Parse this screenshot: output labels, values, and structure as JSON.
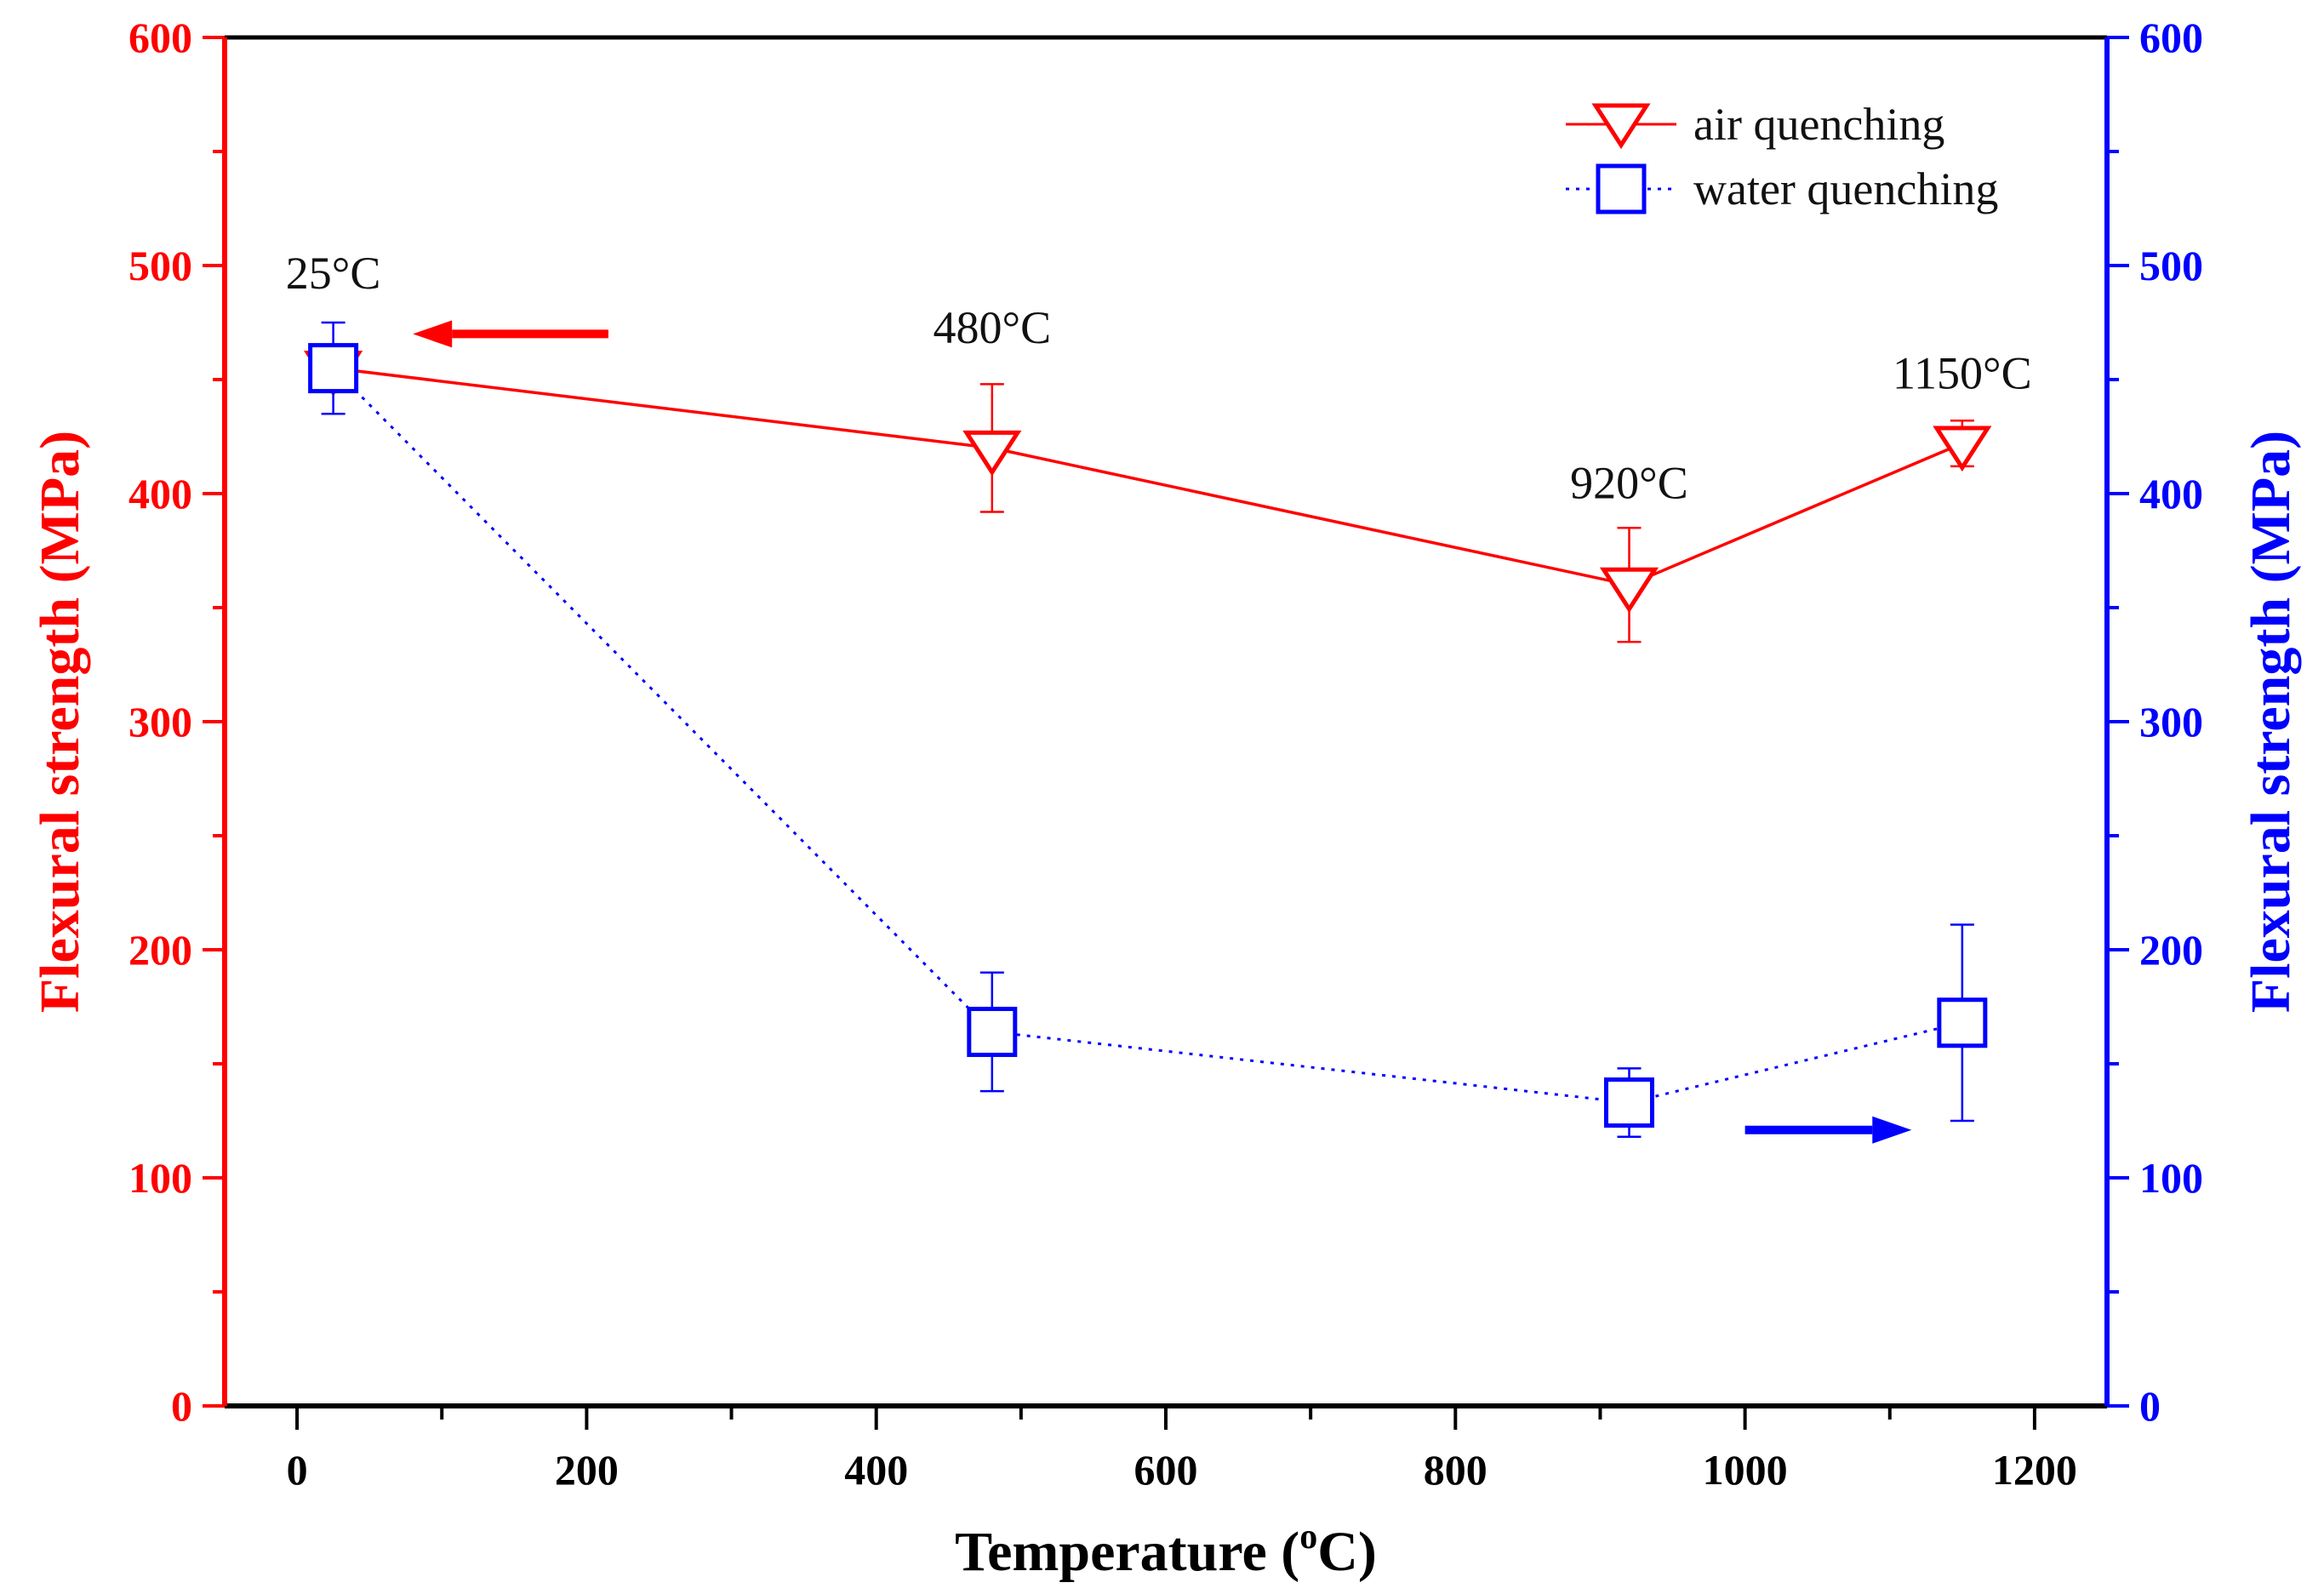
{
  "chart_data": {
    "type": "line",
    "xlabel": "Temperature (",
    "xlabel_sup": "o",
    "xlabel_tail": "C)",
    "ylabel_left": "Flexural strength (MPa)",
    "ylabel_right": "Flexural strength (MPa)",
    "xlim": [
      -50,
      1250
    ],
    "ylim_left": [
      0,
      600
    ],
    "ylim_right": [
      0,
      600
    ],
    "x_ticks": [
      0,
      200,
      400,
      600,
      800,
      1000,
      1200
    ],
    "x_tick_labels": [
      "0",
      "200",
      "400",
      "600",
      "800",
      "1000",
      "1200"
    ],
    "y_ticks": [
      0,
      100,
      200,
      300,
      400,
      500,
      600
    ],
    "y_tick_labels_left": [
      "0",
      "100",
      "200",
      "300",
      "400",
      "500",
      "600"
    ],
    "y_tick_labels_right": [
      "0",
      "100",
      "200",
      "300",
      "400",
      "500",
      "600"
    ],
    "colors": {
      "left_axis": "#ff0000",
      "right_axis": "#0000ff",
      "x_axis": "#000000"
    },
    "legend_position": "top-right",
    "series": [
      {
        "name": "air quenching",
        "axis": "left",
        "color": "#ff0000",
        "line": "solid",
        "marker": "triangle-down",
        "x": [
          25,
          480,
          920,
          1150
        ],
        "y": [
          455,
          420,
          360,
          422
        ],
        "err": [
          0,
          28,
          25,
          10
        ]
      },
      {
        "name": "water quenching",
        "axis": "right",
        "color": "#0000ff",
        "line": "dotted",
        "marker": "square",
        "x": [
          25,
          480,
          920,
          1150
        ],
        "y": [
          455,
          164,
          133,
          168
        ],
        "err": [
          20,
          26,
          15,
          43
        ]
      }
    ],
    "annotations": [
      {
        "text": "25°C",
        "x": 25,
        "y": 490
      },
      {
        "text": "480°C",
        "x": 480,
        "y": 466
      },
      {
        "text": "920°C",
        "x": 920,
        "y": 398
      },
      {
        "text": "1150°C",
        "x": 1150,
        "y": 446
      }
    ],
    "axis_arrows": [
      {
        "points_to": "left-axis",
        "color": "#ff0000",
        "x_from": 215,
        "x_to": 80,
        "y": 470
      },
      {
        "points_to": "right-axis",
        "color": "#0000ff",
        "x_from": 1000,
        "x_to": 1115,
        "y": 121
      }
    ]
  }
}
